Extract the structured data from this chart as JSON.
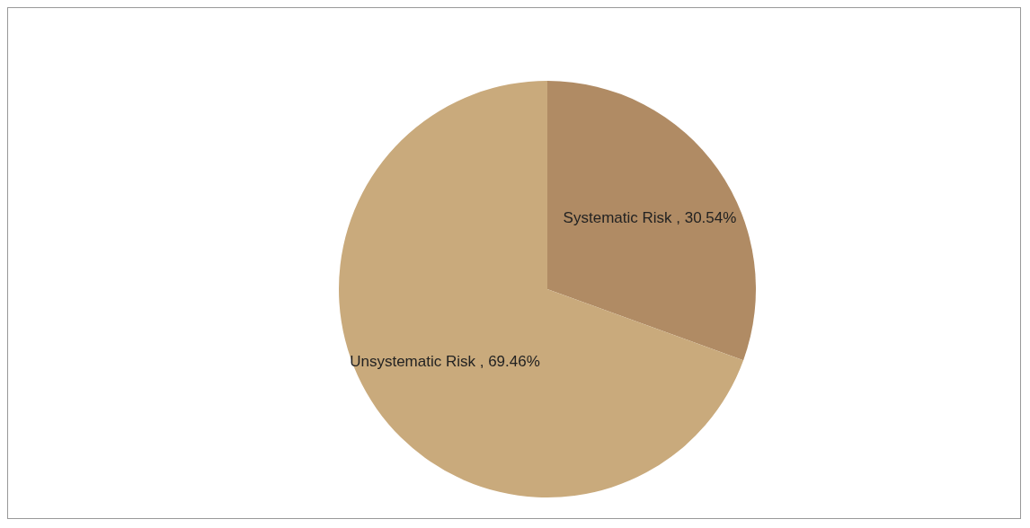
{
  "chart_data": {
    "type": "pie",
    "categories": [
      "Systematic Risk",
      "Unsystematic Risk"
    ],
    "values": [
      30.54,
      69.46
    ],
    "value_labels": [
      "30.54%",
      "69.46%"
    ],
    "colors": [
      "#b08b64",
      "#c9aa7c"
    ]
  }
}
